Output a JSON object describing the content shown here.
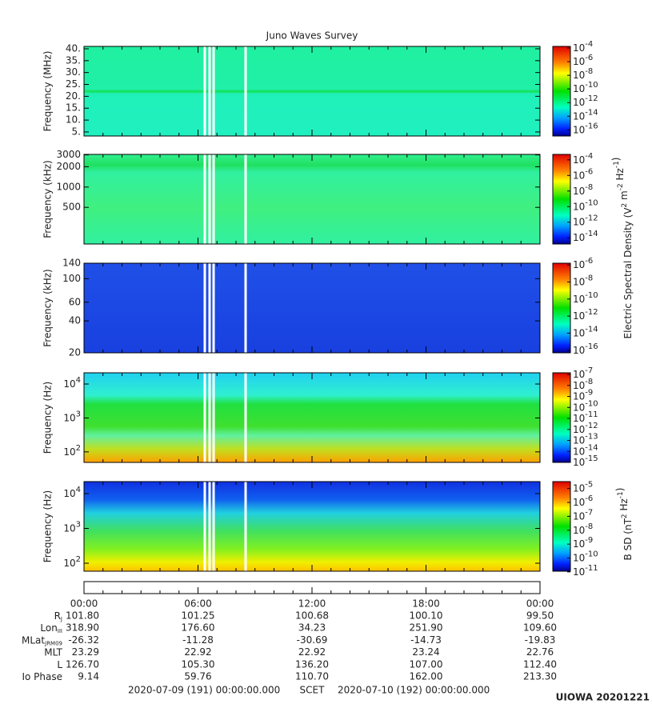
{
  "title": "Juno Waves Survey",
  "panels": [
    {
      "ylabel": "Frequency (MHz)",
      "scale": "linear",
      "ylim": [
        3.3,
        41
      ],
      "yticks": [
        {
          "value": 40,
          "label": "40."
        },
        {
          "value": 35,
          "label": "35."
        },
        {
          "value": 30,
          "label": "30."
        },
        {
          "value": 25,
          "label": "25."
        },
        {
          "value": 20,
          "label": "20."
        },
        {
          "value": 15,
          "label": "15."
        },
        {
          "value": 10,
          "label": "10."
        },
        {
          "value": 5,
          "label": "5."
        }
      ],
      "colorbar": {
        "lim": [
          -16.9,
          -3.76
        ],
        "ticks": [
          {
            "value": -4,
            "label": {
              "base": "10",
              "exp": "-4"
            }
          },
          {
            "value": -6,
            "label": {
              "base": "10",
              "exp": "-6"
            }
          },
          {
            "value": -8,
            "label": {
              "base": "10",
              "exp": "-8"
            }
          },
          {
            "value": -10,
            "label": {
              "base": "10",
              "exp": "-10"
            }
          },
          {
            "value": -12,
            "label": {
              "base": "10",
              "exp": "-12"
            }
          },
          {
            "value": -14,
            "label": {
              "base": "10",
              "exp": "-14"
            }
          },
          {
            "value": -16,
            "label": {
              "base": "10",
              "exp": "-16"
            }
          }
        ]
      }
    },
    {
      "ylabel": "Frequency (kHz)",
      "scale": "log",
      "ylim": [
        143,
        3050
      ],
      "yticks": [
        3000,
        2000,
        1000,
        500
      ],
      "colorbar": {
        "lim": [
          -14.8,
          -3.3
        ],
        "ticks": [
          {
            "value": -4,
            "label": {
              "base": "10",
              "exp": "-4"
            }
          },
          {
            "value": -6,
            "label": {
              "base": "10",
              "exp": "-6"
            }
          },
          {
            "value": -8,
            "label": {
              "base": "10",
              "exp": "-8"
            }
          },
          {
            "value": -10,
            "label": {
              "base": "10",
              "exp": "-10"
            }
          },
          {
            "value": -12,
            "label": {
              "base": "10",
              "exp": "-12"
            }
          },
          {
            "value": -14,
            "label": {
              "base": "10",
              "exp": "-14"
            }
          }
        ]
      }
    },
    {
      "ylabel": "Frequency (kHz)",
      "scale": "log",
      "ylim": [
        20,
        140
      ],
      "yticks": [
        140,
        100,
        60,
        40,
        20
      ],
      "colorbar": {
        "lim": [
          -16.3,
          -5.8
        ],
        "ticks": [
          {
            "value": -6,
            "label": {
              "base": "10",
              "exp": "-6"
            }
          },
          {
            "value": -8,
            "label": {
              "base": "10",
              "exp": "-8"
            }
          },
          {
            "value": -10,
            "label": {
              "base": "10",
              "exp": "-10"
            }
          },
          {
            "value": -12,
            "label": {
              "base": "10",
              "exp": "-12"
            }
          },
          {
            "value": -14,
            "label": {
              "base": "10",
              "exp": "-14"
            }
          },
          {
            "value": -16,
            "label": {
              "base": "10",
              "exp": "-16"
            }
          }
        ]
      }
    },
    {
      "ylabel": "Frequency (Hz)",
      "scale": "log",
      "ylim": [
        49,
        21400
      ],
      "yticks": [
        {
          "value": 10000,
          "label": {
            "base": "10",
            "exp": "4"
          }
        },
        {
          "value": 1000,
          "label": {
            "base": "10",
            "exp": "3"
          }
        },
        {
          "value": 100,
          "label": {
            "base": "10",
            "exp": "2"
          }
        }
      ],
      "colorbar": {
        "lim": [
          -15,
          -6.85
        ],
        "ticks": [
          {
            "value": -7,
            "label": {
              "base": "10",
              "exp": "-7"
            }
          },
          {
            "value": -8,
            "label": {
              "base": "10",
              "exp": "-8"
            }
          },
          {
            "value": -9,
            "label": {
              "base": "10",
              "exp": "-9"
            }
          },
          {
            "value": -10,
            "label": {
              "base": "10",
              "exp": "-10"
            }
          },
          {
            "value": -11,
            "label": {
              "base": "10",
              "exp": "-11"
            }
          },
          {
            "value": -12,
            "label": {
              "base": "10",
              "exp": "-12"
            }
          },
          {
            "value": -13,
            "label": {
              "base": "10",
              "exp": "-13"
            }
          },
          {
            "value": -14,
            "label": {
              "base": "10",
              "exp": "-14"
            }
          },
          {
            "value": -15,
            "label": {
              "base": "10",
              "exp": "-15"
            }
          }
        ]
      }
    },
    {
      "ylabel": "Frequency (Hz)",
      "scale": "log",
      "ylim": [
        59,
        22100
      ],
      "yticks": [
        {
          "value": 10000,
          "label": {
            "base": "10",
            "exp": "4"
          }
        },
        {
          "value": 1000,
          "label": {
            "base": "10",
            "exp": "3"
          }
        },
        {
          "value": 100,
          "label": {
            "base": "10",
            "exp": "2"
          }
        }
      ],
      "colorbar": {
        "lim": [
          -10.95,
          -4.5
        ],
        "ticks": [
          {
            "value": -5,
            "label": {
              "base": "10",
              "exp": "-5"
            }
          },
          {
            "value": -6,
            "label": {
              "base": "10",
              "exp": "-6"
            }
          },
          {
            "value": -7,
            "label": {
              "base": "10",
              "exp": "-7"
            }
          },
          {
            "value": -8,
            "label": {
              "base": "10",
              "exp": "-8"
            }
          },
          {
            "value": -9,
            "label": {
              "base": "10",
              "exp": "-9"
            }
          },
          {
            "value": -10,
            "label": {
              "base": "10",
              "exp": "-10"
            }
          },
          {
            "value": -11,
            "label": {
              "base": "10",
              "exp": "-11"
            }
          }
        ]
      }
    }
  ],
  "colorbar_labels": [
    [
      {
        "text": "Electric Spectral Density (V"
      },
      {
        "sup": "2"
      },
      {
        "text": " m"
      },
      {
        "sup": "-2"
      },
      {
        "text": " Hz"
      },
      {
        "sup": "-1"
      },
      {
        "text": ")"
      }
    ],
    [
      {
        "text": "B SD (nT"
      },
      {
        "sup": "2"
      },
      {
        "text": " Hz"
      },
      {
        "sup": "-1"
      },
      {
        "text": ")"
      }
    ]
  ],
  "time_labels": [
    "00:00",
    "06:00",
    "12:00",
    "18:00",
    "00:00"
  ],
  "ephemeris": [
    {
      "label": {
        "text": "R",
        "sub": "J"
      },
      "values": [
        "101.80",
        "101.25",
        "100.68",
        "100.10",
        "99.50"
      ]
    },
    {
      "label": {
        "text": "Lon",
        "sub": "III"
      },
      "values": [
        "318.90",
        "176.60",
        "34.23",
        "251.90",
        "109.60"
      ]
    },
    {
      "label": {
        "text": "MLat",
        "sub": "JRM09"
      },
      "values": [
        "-26.32",
        "-11.28",
        "-30.69",
        "-14.73",
        "-19.83"
      ]
    },
    {
      "label": {
        "text": "MLT"
      },
      "values": [
        "23.29",
        "22.92",
        "22.92",
        "23.24",
        "22.76"
      ]
    },
    {
      "label": {
        "text": "L"
      },
      "values": [
        "126.70",
        "105.30",
        "136.20",
        "107.00",
        "112.40"
      ]
    },
    {
      "label": {
        "text": "Io Phase"
      },
      "values": [
        "9.14",
        "59.76",
        "110.70",
        "162.00",
        "213.30"
      ]
    }
  ],
  "footer": {
    "start": "2020-07-09 (191) 00:00:00.000",
    "middle": "SCET",
    "end": "2020-07-10 (192) 00:00:00.000",
    "stamp": "UIOWA 20201221"
  }
}
